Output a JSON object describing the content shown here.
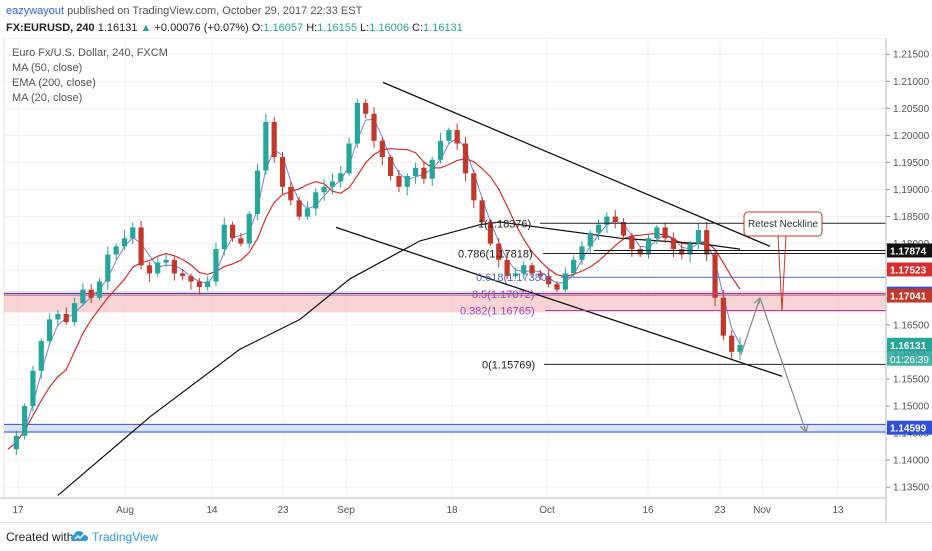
{
  "header": {
    "author": "eazywayout",
    "published_text": "published on TradingView.com, October 29, 2017 22:33 EST",
    "symbol": "FX:EURUSD, 240",
    "last": "1.16131",
    "change": "+0.00076 (+0.07%)",
    "open_label": "O:",
    "open": "1.16057",
    "high_label": "H:",
    "high": "1.16155",
    "low_label": "L:",
    "low": "1.16006",
    "close_label": "C:",
    "close": "1.16131"
  },
  "legend": {
    "title": "Euro Fx/U.S. Dollar, 240, FXCM",
    "ma50": "MA (50, close)",
    "ema200": "EMA (200, close)",
    "ma20": "MA (20, close)"
  },
  "footer": {
    "created_with": "Created with",
    "brand": "TradingView"
  },
  "colors": {
    "up": "#26a69a",
    "down": "#c0392b",
    "ma50": "#d32f2f",
    "ema200": "#111111",
    "ma20": "#7e7ed9",
    "zone_red": "#f7c6c6",
    "zone_blue": "#3050d8",
    "fib_blue": "#5565c8",
    "fib_magenta": "#b040b0"
  },
  "chart_data": {
    "type": "candlestick",
    "timeframe": "240",
    "instrument": "Euro Fx/U.S. Dollar",
    "ylim": [
      1.133,
      1.218
    ],
    "y_ticks": [
      "1.21500",
      "1.21000",
      "1.20500",
      "1.20000",
      "1.19500",
      "1.19000",
      "1.18500",
      "1.18000",
      "1.17500",
      "1.17000",
      "1.16500",
      "1.16000",
      "1.15500",
      "1.15000",
      "1.14500",
      "1.14000",
      "1.13500"
    ],
    "x_tick_labels": [
      "17",
      "Aug",
      "14",
      "23",
      "Sep",
      "18",
      "Oct",
      "16",
      "23",
      "Nov",
      "13"
    ],
    "close_path": [
      1.142,
      1.1445,
      1.15,
      1.1565,
      1.162,
      1.166,
      1.167,
      1.1655,
      1.169,
      1.1715,
      1.17,
      1.173,
      1.178,
      1.1795,
      1.181,
      1.183,
      1.176,
      1.1745,
      1.1765,
      1.177,
      1.1745,
      1.174,
      1.173,
      1.172,
      1.173,
      1.179,
      1.1835,
      1.181,
      1.18,
      1.1855,
      1.1935,
      1.2025,
      1.196,
      1.1905,
      1.188,
      1.185,
      1.1865,
      1.1895,
      1.1905,
      1.1915,
      1.193,
      1.1985,
      1.206,
      1.204,
      1.199,
      1.196,
      1.1925,
      1.1905,
      1.1925,
      1.194,
      1.192,
      1.1955,
      1.199,
      1.201,
      1.1985,
      1.193,
      1.188,
      1.184,
      1.18,
      1.177,
      1.174,
      1.1745,
      1.176,
      1.1745,
      1.174,
      1.1725,
      1.1715,
      1.1745,
      1.177,
      1.1795,
      1.182,
      1.1835,
      1.185,
      1.184,
      1.1815,
      1.179,
      1.178,
      1.181,
      1.183,
      1.181,
      1.179,
      1.178,
      1.18,
      1.1825,
      1.178,
      1.17,
      1.163,
      1.16,
      1.1613
    ],
    "indicators": [
      "MA (50, close)",
      "EMA (200, close)",
      "MA (20, close)"
    ],
    "horizontal_levels": [
      {
        "label": "1.17874",
        "value": 1.17874,
        "color": "#111111"
      },
      {
        "label": "1.17523",
        "value": 1.17523,
        "color": "#d32f2f"
      },
      {
        "label": "1.17076",
        "value": 1.17076,
        "color": "#3050d8"
      },
      {
        "label": "1.17041",
        "value": 1.17041,
        "color": "#c0392b"
      },
      {
        "label": "1.16131",
        "value": 1.16131,
        "color": "#26a69a"
      },
      {
        "label": "1.14599",
        "value": 1.14599,
        "color": "#3050d8"
      }
    ],
    "countdown_label": "01:26:39",
    "fibonacci": [
      {
        "label": "1(1.18376)",
        "value": 1.18376,
        "color": "#222222"
      },
      {
        "label": "0.786(1.17818)",
        "value": 1.17818,
        "color": "#222222"
      },
      {
        "label": "0.618(1.17380)",
        "value": 1.1738,
        "color": "#5565c8"
      },
      {
        "label": "0.5(1.17072)",
        "value": 1.17072,
        "color": "#b040b0"
      },
      {
        "label": "0.382(1.16765)",
        "value": 1.16765,
        "color": "#b040b0"
      },
      {
        "label": "0(1.15769)",
        "value": 1.15769,
        "color": "#222222"
      }
    ],
    "annotation": "Retest Neckline"
  }
}
